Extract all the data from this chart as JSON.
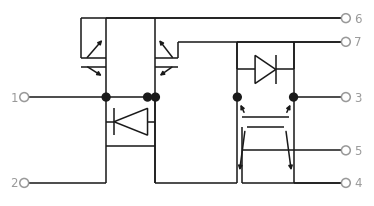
{
  "bg_color": "#ffffff",
  "line_color": "#1a1a1a",
  "dot_color": "#1a1a1a",
  "terminal_color": "#999999",
  "label_color": "#999999",
  "figsize": [
    3.74,
    2.07
  ],
  "dpi": 100
}
